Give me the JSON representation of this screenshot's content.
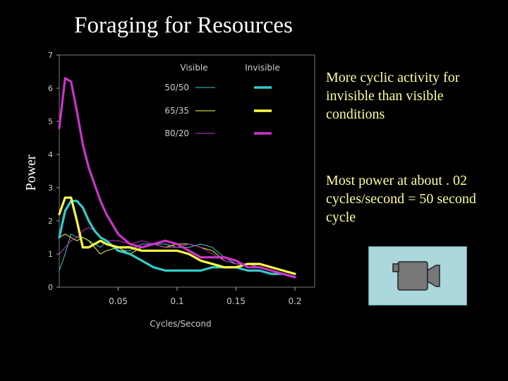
{
  "slide": {
    "title": "Foraging for Resources",
    "notes": [
      "More cyclic activity for invisible than visible conditions",
      "Most power at about . 02 cycles/second = 50 second cycle"
    ]
  },
  "media": {
    "icon": "movie-camera-icon"
  },
  "colors": {
    "background": "#000000",
    "plot_bg": "#000000",
    "note_text": "#ffff99",
    "c50_50": "#33cccc",
    "c65_35": "#ffff44",
    "c80_20": "#cc33cc"
  },
  "chart_data": {
    "type": "line",
    "title": "",
    "xlabel": "Cycles/Second",
    "ylabel": "Power",
    "xlim": [
      0,
      0.2
    ],
    "ylim": [
      0,
      7
    ],
    "xticks": [
      0.05,
      0.1,
      0.15,
      0.2
    ],
    "xtick_labels": [
      "0.05",
      "0.1",
      "0.15",
      "0.2"
    ],
    "yticks": [
      0,
      1,
      2,
      3,
      4,
      5,
      6,
      7
    ],
    "ytick_labels": [
      "0",
      "1",
      "2",
      "3",
      "4",
      "5",
      "6",
      "7"
    ],
    "grid": false,
    "legend": {
      "placement": "top-right",
      "column_headers": [
        "Visible",
        "Invisible"
      ],
      "rows": [
        "50/50",
        "65/35",
        "80/20"
      ]
    },
    "x": [
      0.0,
      0.005,
      0.01,
      0.015,
      0.02,
      0.025,
      0.03,
      0.035,
      0.04,
      0.05,
      0.06,
      0.07,
      0.08,
      0.09,
      0.1,
      0.11,
      0.12,
      0.13,
      0.14,
      0.15,
      0.16,
      0.17,
      0.18,
      0.19,
      0.2
    ],
    "series": [
      {
        "name": "50/50 Visible",
        "condition": "50/50",
        "mode": "visible",
        "values": [
          0.5,
          1.0,
          1.6,
          1.5,
          1.5,
          1.4,
          1.3,
          1.2,
          1.4,
          1.1,
          1.1,
          1.3,
          1.3,
          1.3,
          1.2,
          1.2,
          1.3,
          1.2,
          0.9,
          0.7,
          0.7,
          0.6,
          0.5,
          0.4,
          0.3
        ]
      },
      {
        "name": "65/35 Visible",
        "condition": "65/35",
        "mode": "visible",
        "values": [
          1.5,
          1.6,
          1.5,
          1.4,
          1.5,
          1.4,
          1.2,
          1.0,
          1.1,
          1.2,
          1.0,
          1.2,
          1.3,
          1.2,
          1.3,
          1.3,
          1.2,
          1.1,
          0.8,
          0.7,
          0.7,
          0.7,
          0.6,
          0.5,
          0.4
        ]
      },
      {
        "name": "80/20 Visible",
        "condition": "80/20",
        "mode": "visible",
        "values": [
          1.0,
          1.2,
          1.4,
          1.5,
          1.7,
          1.8,
          1.7,
          1.5,
          1.4,
          1.4,
          1.3,
          1.4,
          1.3,
          1.2,
          1.2,
          1.3,
          1.2,
          1.0,
          0.8,
          0.7,
          0.7,
          0.6,
          0.5,
          0.4,
          0.3
        ]
      },
      {
        "name": "50/50 Invisible",
        "condition": "50/50",
        "mode": "invisible",
        "values": [
          1.5,
          2.3,
          2.6,
          2.6,
          2.4,
          2.0,
          1.7,
          1.5,
          1.4,
          1.1,
          1.0,
          0.8,
          0.6,
          0.5,
          0.5,
          0.5,
          0.5,
          0.6,
          0.6,
          0.6,
          0.5,
          0.5,
          0.4,
          0.4,
          0.3
        ]
      },
      {
        "name": "65/35 Invisible",
        "condition": "65/35",
        "mode": "invisible",
        "values": [
          2.2,
          2.7,
          2.7,
          2.0,
          1.2,
          1.2,
          1.3,
          1.4,
          1.3,
          1.2,
          1.2,
          1.1,
          1.1,
          1.1,
          1.1,
          1.0,
          0.8,
          0.7,
          0.6,
          0.6,
          0.7,
          0.7,
          0.6,
          0.5,
          0.4
        ]
      },
      {
        "name": "80/20 Invisible",
        "condition": "80/20",
        "mode": "invisible",
        "values": [
          4.8,
          6.3,
          6.2,
          5.3,
          4.3,
          3.6,
          3.1,
          2.6,
          2.2,
          1.6,
          1.3,
          1.2,
          1.3,
          1.4,
          1.3,
          1.1,
          0.9,
          0.9,
          0.9,
          0.8,
          0.6,
          0.6,
          0.5,
          0.4,
          0.3
        ]
      }
    ]
  }
}
